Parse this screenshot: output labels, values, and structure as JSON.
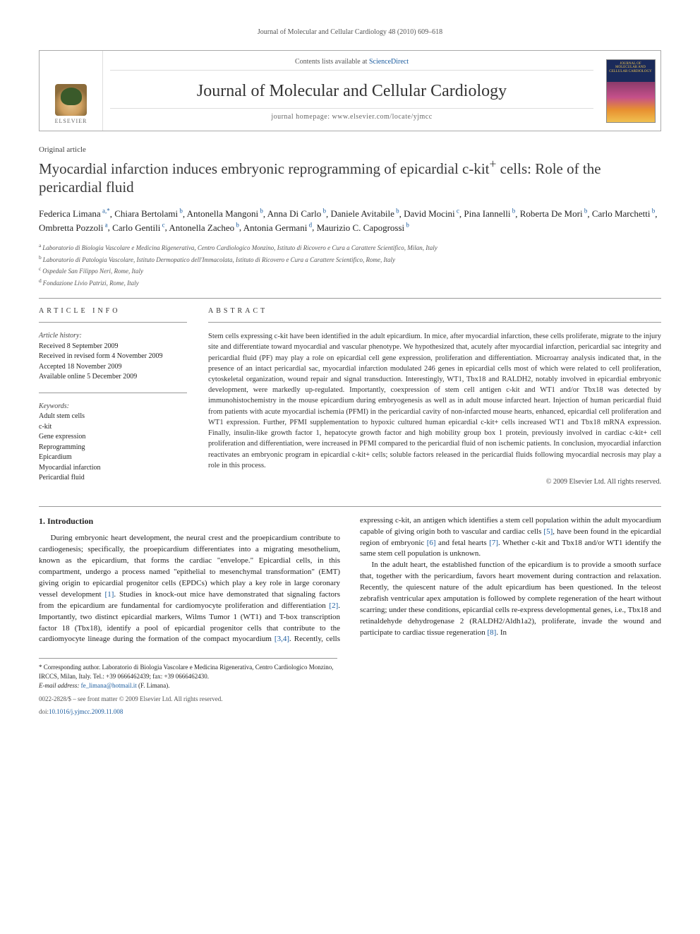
{
  "running_header": "Journal of Molecular and Cellular Cardiology 48 (2010) 609–618",
  "journal_box": {
    "contents_prefix": "Contents lists available at ",
    "contents_link": "ScienceDirect",
    "journal_name": "Journal of Molecular and Cellular Cardiology",
    "homepage_prefix": "journal homepage: ",
    "homepage_url": "www.elsevier.com/locate/yjmcc",
    "publisher_name": "ELSEVIER",
    "cover_label": "JMCC"
  },
  "article_type": "Original article",
  "title_line1": "Myocardial infarction induces embryonic reprogramming of epicardial c-kit",
  "title_sup": "+",
  "title_line2": " cells: Role of the pericardial fluid",
  "authors": [
    {
      "name": "Federica Limana",
      "aff": "a,",
      "corr": "*"
    },
    {
      "name": "Chiara Bertolami",
      "aff": "b"
    },
    {
      "name": "Antonella Mangoni",
      "aff": "b"
    },
    {
      "name": "Anna Di Carlo",
      "aff": "b"
    },
    {
      "name": "Daniele Avitabile",
      "aff": "b"
    },
    {
      "name": "David Mocini",
      "aff": "c"
    },
    {
      "name": "Pina Iannelli",
      "aff": "b"
    },
    {
      "name": "Roberta De Mori",
      "aff": "b"
    },
    {
      "name": "Carlo Marchetti",
      "aff": "b"
    },
    {
      "name": "Ombretta Pozzoli",
      "aff": "a"
    },
    {
      "name": "Carlo Gentili",
      "aff": "c"
    },
    {
      "name": "Antonella Zacheo",
      "aff": "b"
    },
    {
      "name": "Antonia Germani",
      "aff": "d"
    },
    {
      "name": "Maurizio C. Capogrossi",
      "aff": "b"
    }
  ],
  "affiliations": [
    {
      "sup": "a",
      "text": "Laboratorio di Biologia Vascolare e Medicina Rigenerativa, Centro Cardiologico Monzino, Istituto di Ricovero e Cura a Carattere Scientifico, Milan, Italy"
    },
    {
      "sup": "b",
      "text": "Laboratorio di Patologia Vascolare, Istituto Dermopatico dell'Immacolata, Istituto di Ricovero e Cura a Carattere Scientifico, Rome, Italy"
    },
    {
      "sup": "c",
      "text": "Ospedale San Filippo Neri, Rome, Italy"
    },
    {
      "sup": "d",
      "text": "Fondazione Livio Patrizi, Rome, Italy"
    }
  ],
  "info": {
    "section_label": "ARTICLE INFO",
    "history_hd": "Article history:",
    "history": [
      "Received 8 September 2009",
      "Received in revised form 4 November 2009",
      "Accepted 18 November 2009",
      "Available online 5 December 2009"
    ],
    "keywords_hd": "Keywords:",
    "keywords": [
      "Adult stem cells",
      "c-kit",
      "Gene expression",
      "Reprogramming",
      "Epicardium",
      "Myocardial infarction",
      "Pericardial fluid"
    ]
  },
  "abstract": {
    "section_label": "ABSTRACT",
    "text": "Stem cells expressing c-kit have been identified in the adult epicardium. In mice, after myocardial infarction, these cells proliferate, migrate to the injury site and differentiate toward myocardial and vascular phenotype. We hypothesized that, acutely after myocardial infarction, pericardial sac integrity and pericardial fluid (PF) may play a role on epicardial cell gene expression, proliferation and differentiation. Microarray analysis indicated that, in the presence of an intact pericardial sac, myocardial infarction modulated 246 genes in epicardial cells most of which were related to cell proliferation, cytoskeletal organization, wound repair and signal transduction. Interestingly, WT1, Tbx18 and RALDH2, notably involved in epicardial embryonic development, were markedly up-regulated. Importantly, coexpression of stem cell antigen c-kit and WT1 and/or Tbx18 was detected by immunohistochemistry in the mouse epicardium during embryogenesis as well as in adult mouse infarcted heart. Injection of human pericardial fluid from patients with acute myocardial ischemia (PFMI) in the pericardial cavity of non-infarcted mouse hearts, enhanced, epicardial cell proliferation and WT1 expression. Further, PFMI supplementation to hypoxic cultured human epicardial c-kit+ cells increased WT1 and Tbx18 mRNA expression. Finally, insulin-like growth factor 1, hepatocyte growth factor and high mobility group box 1 protein, previously involved in cardiac c-kit+ cell proliferation and differentiation, were increased in PFMI compared to the pericardial fluid of non ischemic patients. In conclusion, myocardial infarction reactivates an embryonic program in epicardial c-kit+ cells; soluble factors released in the pericardial fluids following myocardial necrosis may play a role in this process.",
    "copyright": "© 2009 Elsevier Ltd. All rights reserved."
  },
  "intro_heading": "1. Introduction",
  "intro_p1_a": "During embryonic heart development, the neural crest and the proepicardium contribute to cardiogenesis; specifically, the proepicardium differentiates into a migrating mesothelium, known as the epicardium, that forms the cardiac \"envelope.\" Epicardial cells, in this compartment, undergo a process named \"epithelial to mesenchymal transformation\" (EMT) giving origin to epicardial progenitor cells (EPDCs) which play a key role in large coronary vessel development ",
  "ref1": "[1]",
  "intro_p1_b": ". Studies in knock-out mice have demonstrated that signaling factors from the epicardium are fundamental for cardiomyocyte proliferation and differentiation ",
  "ref2": "[2]",
  "intro_p1_c": ". Importantly, two distinct epicardial markers, ",
  "intro_p1_d": "Wilms Tumor 1 (WT1) and T-box transcription factor 18 (Tbx18), identify a pool of epicardial progenitor cells that contribute to the cardiomyocyte lineage during the formation of the compact myocardium ",
  "ref34": "[3,4]",
  "intro_p1_e": ". Recently, cells expressing c-kit, an antigen which identifies a stem cell population within the adult myocardium capable of giving origin both to vascular and cardiac cells ",
  "ref5": "[5]",
  "intro_p1_f": ", have been found in the epicardial region of embryonic ",
  "ref6": "[6]",
  "intro_p1_g": " and fetal hearts ",
  "ref7": "[7]",
  "intro_p1_h": ". Whether c-kit and Tbx18 and/or WT1 identify the same stem cell population is unknown.",
  "intro_p2_a": "In the adult heart, the established function of the epicardium is to provide a smooth surface that, together with the pericardium, favors heart movement during contraction and relaxation. Recently, the quiescent nature of the adult epicardium has been questioned. In the teleost zebrafish ventricular apex amputation is followed by complete regeneration of the heart without scarring; under these conditions, epicardial cells re-express developmental genes, i.e., Tbx18 and retinaldehyde dehydrogenase 2 (RALDH2/Aldh1a2), proliferate, invade the wound and participate to cardiac tissue regeneration ",
  "ref8": "[8]",
  "intro_p2_b": ". In",
  "footnote": {
    "corr_label": "* Corresponding author. Laboratorio di Biologia Vascolare e Medicina Rigenerativa, Centro Cardiologico Monzino, IRCCS, Milan, Italy. Tel.: +39 0666462439; fax: +39 0666462430.",
    "email_label": "E-mail address: ",
    "email": "fe_limana@hotmail.it",
    "email_suffix": " (F. Limana)."
  },
  "bottom": {
    "issn_line": "0022-2828/$ – see front matter © 2009 Elsevier Ltd. All rights reserved.",
    "doi_prefix": "doi:",
    "doi": "10.1016/j.yjmcc.2009.11.008"
  },
  "colors": {
    "link": "#1a5b9e",
    "text": "#222",
    "muted": "#555",
    "rule": "#999"
  }
}
